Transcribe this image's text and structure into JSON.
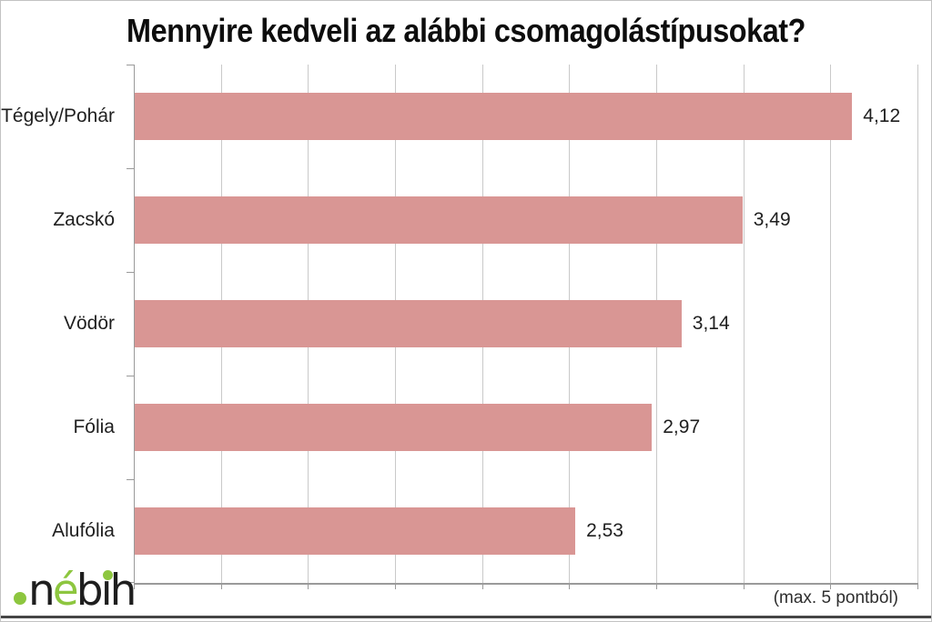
{
  "title": "Mennyire kedveli az alábbi csomagolástípusokat?",
  "footer_note": "(max. 5 pontból)",
  "logo": {
    "name": "nébih",
    "part1": "n",
    "part2": "é",
    "part3": "b",
    "part4": "ı",
    "part5": "h",
    "green": "#8dc63f",
    "dark": "#1e1e1e"
  },
  "colors": {
    "bar_fill": "#d99694",
    "gridline": "#c9c9c9",
    "axis": "#9a9a9a",
    "text": "#1f1f1f"
  },
  "chart_data": {
    "type": "bar",
    "orientation": "horizontal",
    "title": "Mennyire kedveli az alábbi csomagolástípusokat?",
    "categories": [
      "Tégely/Pohár",
      "Zacskó",
      "Vödör",
      "Fólia",
      "Alufólia"
    ],
    "values": [
      4.12,
      3.49,
      3.14,
      2.97,
      2.53
    ],
    "display_values": [
      "4,12",
      "3,49",
      "3,14",
      "2,97",
      "2,53"
    ],
    "xlabel": "",
    "ylabel": "",
    "xlim": [
      0,
      4.5
    ],
    "grid_step": 0.5,
    "grid": true,
    "legend": false,
    "annotation": "(max. 5 pontból)"
  }
}
